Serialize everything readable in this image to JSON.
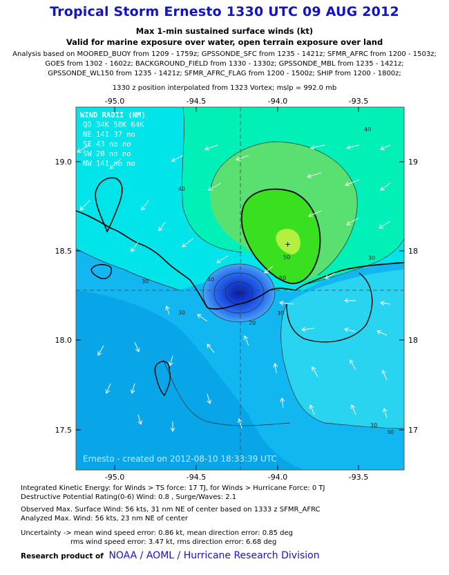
{
  "header": {
    "title": "Tropical Storm Ernesto 1330 UTC 09 AUG 2012",
    "subtitle1": "Max 1-min sustained surface winds (kt)",
    "subtitle2": "Valid for marine exposure over water, open terrain exposure over land",
    "analysis_lines": [
      "Analysis based on MOORED_BUOY from 1209 - 1759z; GPSSONDE_SFC from 1235 - 1421z; SFMR_AFRC from 1200 - 1503z;",
      "GOES from 1302 - 1602z; BACKGROUND_FIELD from 1330 - 1330z; GPSSONDE_MBL from 1235 - 1421z;",
      "GPSSONDE_WL150 from 1235 - 1421z; SFMR_AFRC_FLAG from 1200 - 1500z; SHIP from 1200 - 1800z;"
    ],
    "position_note": "1330 z position interpolated from 1323 Vortex; mslp = 992.0 mb"
  },
  "map": {
    "lon_ticks": [
      "-95.0",
      "-94.5",
      "-94.0",
      "-93.5"
    ],
    "lat_ticks": [
      "19.0",
      "18.5",
      "18.0",
      "17.5"
    ],
    "right_lat_ticks": [
      "19",
      "18",
      "18",
      "17"
    ],
    "contour_labels": [
      "40",
      "40",
      "40",
      "50",
      "50",
      "30",
      "30",
      "30",
      "20",
      "30",
      "30",
      "30"
    ],
    "watermark": "Ernesto - created on 2012-08-10 18:33:39 UTC",
    "wind_radii": {
      "title": "WIND RADII (NM)",
      "header": "QD  34K  50K  64K",
      "rows": [
        "NE  141   37   no",
        "SE   43   no   no",
        "SW   20   no   no",
        "NW  141   no   no"
      ]
    },
    "colors": {
      "ocean_low": "#00aaee",
      "band_20_30": "#30c8f0",
      "band_30_40": "#00e8e8",
      "band_40_50": "#00f0b0",
      "band_50_60": "#30e830",
      "band_60plus": "#a8f030",
      "core_blue": "#1040d0"
    }
  },
  "footer": {
    "lines": [
      "Integrated Kinetic Energy: for Winds > TS force: 17 TJ, for Winds > Hurricane Force: 0 TJ",
      "Destructive Potential Rating(0-6)  Wind: 0.8 , Surge/Waves: 2.1",
      "Observed Max. Surface Wind: 56 kts, 31 nm NE of center based on 1333 z SFMR_AFRC",
      "Analyzed Max. Wind: 56 kts, 23 nm  NE of center",
      "Uncertainty -> mean wind speed error: 0.86 kt, mean direction error: 0.85 deg",
      "rms wind speed error: 3.47 kt, rms direction error: 6.68 deg"
    ],
    "credit_prefix": "Research product of",
    "credit_org": "NOAA / AOML / Hurricane Research Division"
  }
}
